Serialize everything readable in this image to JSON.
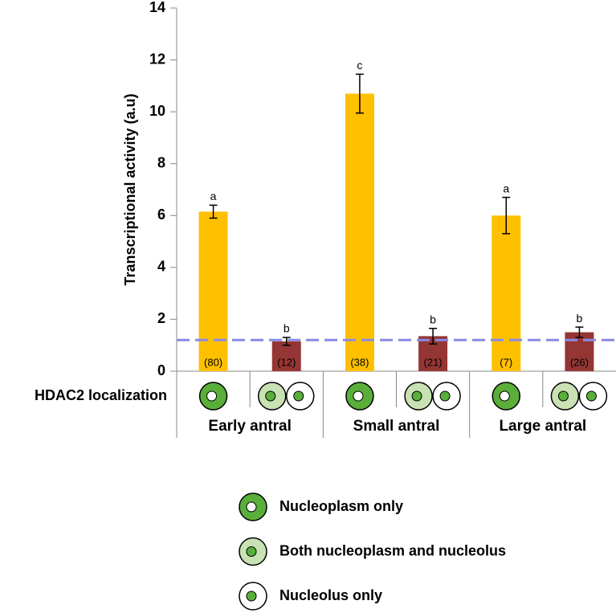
{
  "chart_data": {
    "type": "bar",
    "y_label": "Transcriptional activity (a.u)",
    "row_label": "HDAC2 localization",
    "groups": [
      "Early antral",
      "Small antral",
      "Large antral"
    ],
    "values": [
      6.15,
      1.15,
      10.7,
      1.35,
      6.0,
      1.5
    ],
    "errors": [
      0.25,
      0.15,
      0.75,
      0.3,
      0.7,
      0.2
    ],
    "letters": [
      "a",
      "b",
      "c",
      "b",
      "a",
      "b"
    ],
    "n_labels": [
      "(80)",
      "(12)",
      "(38)",
      "(21)",
      "(7)",
      "(26)"
    ],
    "colors": [
      "#ffc000",
      "#943634",
      "#ffc000",
      "#943634",
      "#ffc000",
      "#943634"
    ],
    "reference_line": 1.2,
    "reference_color": "#8a8ae6",
    "ylim": [
      0,
      14
    ],
    "yticks": [
      0,
      2,
      4,
      6,
      8,
      10,
      12,
      14
    ],
    "legend": [
      "Nucleoplasm only",
      "Both nucleoplasm and nucleolus",
      "Nucleolus only"
    ]
  }
}
